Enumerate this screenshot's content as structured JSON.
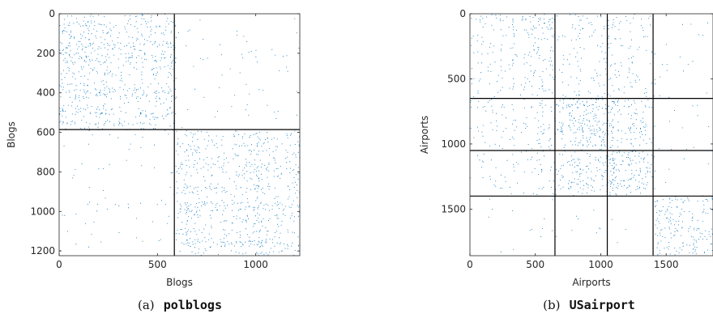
{
  "chart_data": [
    {
      "type": "heatmap",
      "subtype": "sparse-adjacency-matrix",
      "caption_prefix": "(a)",
      "caption_name": "polblogs",
      "xlabel": "Blogs",
      "ylabel": "Blogs",
      "xlim": [
        0,
        1224
      ],
      "ylim": [
        0,
        1224
      ],
      "y_reversed": true,
      "x_ticks": [
        0,
        500,
        1000
      ],
      "y_ticks": [
        0,
        200,
        400,
        600,
        800,
        1000,
        1200
      ],
      "block_boundaries": [
        0,
        586,
        1224
      ],
      "marker_color": "#0072BD",
      "boundary_color": "#000000"
    },
    {
      "type": "heatmap",
      "subtype": "sparse-adjacency-matrix",
      "caption_prefix": "(b)",
      "caption_name": "USairport",
      "xlabel": "Airports",
      "ylabel": "Airports",
      "xlim": [
        0,
        1858
      ],
      "ylim": [
        0,
        1858
      ],
      "y_reversed": true,
      "x_ticks": [
        0,
        500,
        1000,
        1500
      ],
      "y_ticks": [
        0,
        500,
        1000,
        1500
      ],
      "block_boundaries": [
        0,
        650,
        1050,
        1400,
        1858
      ],
      "marker_color": "#0072BD",
      "boundary_color": "#000000"
    }
  ]
}
